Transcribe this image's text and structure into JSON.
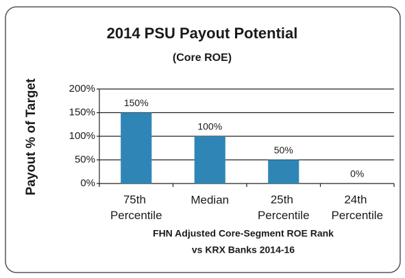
{
  "chart_data": {
    "type": "bar",
    "title": "2014 PSU Payout Potential",
    "subtitle": "(Core ROE)",
    "ylabel": "Payout % of Target",
    "xlabel": [
      "FHN Adjusted Core-Segment ROE Rank",
      "vs KRX Banks 2014-16"
    ],
    "categories": [
      "75th Percentile",
      "Median",
      "25th Percentile",
      "24th Percentile"
    ],
    "values": [
      150,
      100,
      50,
      0
    ],
    "value_labels": [
      "150%",
      "100%",
      "50%",
      "0%"
    ],
    "color": "#2f86b6",
    "ylim": [
      0,
      200
    ],
    "yticks": [
      {
        "value": 0,
        "label": "0%"
      },
      {
        "value": 50,
        "label": "50%"
      },
      {
        "value": 100,
        "label": "100%"
      },
      {
        "value": 150,
        "label": "150%"
      },
      {
        "value": 200,
        "label": "200%"
      }
    ],
    "grid": true
  }
}
